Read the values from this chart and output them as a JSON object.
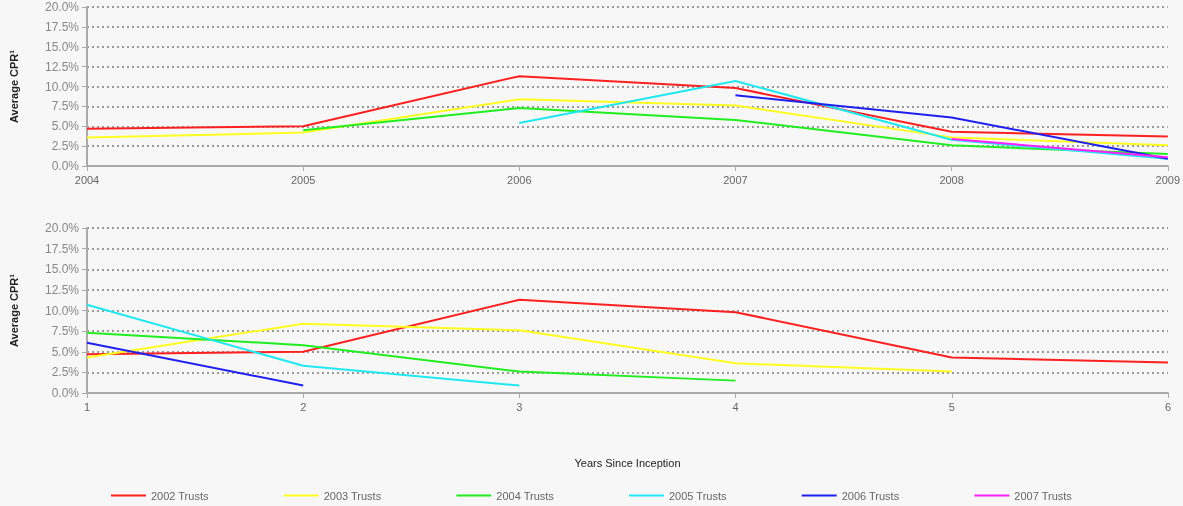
{
  "chart_data": [
    {
      "type": "line",
      "ylabel": "Average CPR¹",
      "x": [
        2004,
        2005,
        2006,
        2007,
        2008,
        2009
      ],
      "xlim": [
        2004,
        2009
      ],
      "xticks": [
        2004,
        2005,
        2006,
        2007,
        2008,
        2009
      ],
      "ylim": [
        0,
        20
      ],
      "yticks": [
        {
          "value": 0,
          "label": "0.0%"
        },
        {
          "value": 2.5,
          "label": "2.5%"
        },
        {
          "value": 5,
          "label": "5.0%"
        },
        {
          "value": 7.5,
          "label": "7.5%"
        },
        {
          "value": 10,
          "label": "10.0%"
        },
        {
          "value": 12.5,
          "label": "12.5%"
        },
        {
          "value": 15,
          "label": "15.0%"
        },
        {
          "value": 17.5,
          "label": "17.5%"
        },
        {
          "value": 20,
          "label": "20.0%"
        }
      ],
      "grid": "y",
      "legend": "bottom",
      "marker": "none",
      "line_style": "solid",
      "series": [
        {
          "name": "2002 Trusts",
          "color": "#ff2020",
          "values": [
            4.7,
            5.0,
            11.3,
            9.8,
            4.3,
            3.7
          ]
        },
        {
          "name": "2003 Trusts",
          "color": "#ffff20",
          "values": [
            3.6,
            4.2,
            8.4,
            7.6,
            3.6,
            2.6
          ]
        },
        {
          "name": "2004 Trusts",
          "color": "#20ee20",
          "values": [
            null,
            4.5,
            7.3,
            5.8,
            2.6,
            1.5
          ]
        },
        {
          "name": "2005 Trusts",
          "color": "#20e8f0",
          "values": [
            null,
            null,
            5.4,
            10.7,
            3.3,
            0.9
          ]
        },
        {
          "name": "2006 Trusts",
          "color": "#2020ee",
          "values": [
            null,
            null,
            null,
            8.9,
            6.1,
            0.9
          ]
        },
        {
          "name": "2007 Trusts",
          "color": "#ff20ff",
          "values": [
            null,
            null,
            null,
            null,
            3.4,
            1.1
          ]
        }
      ]
    },
    {
      "type": "line",
      "ylabel": "Average CPR¹",
      "xlabel": "Years Since Inception",
      "x": [
        1,
        2,
        3,
        4,
        5,
        6
      ],
      "xlim": [
        1,
        6
      ],
      "xticks": [
        1,
        2,
        3,
        4,
        5,
        6
      ],
      "ylim": [
        0,
        20
      ],
      "yticks": [
        {
          "value": 0,
          "label": "0.0%"
        },
        {
          "value": 2.5,
          "label": "2.5%"
        },
        {
          "value": 5,
          "label": "5.0%"
        },
        {
          "value": 7.5,
          "label": "7.5%"
        },
        {
          "value": 10,
          "label": "10.0%"
        },
        {
          "value": 12.5,
          "label": "12.5%"
        },
        {
          "value": 15,
          "label": "15.0%"
        },
        {
          "value": 17.5,
          "label": "17.5%"
        },
        {
          "value": 20,
          "label": "20.0%"
        }
      ],
      "grid": "y",
      "marker": "none",
      "line_style": "solid",
      "series": [
        {
          "color": "#ff2020",
          "values": [
            4.7,
            5.0,
            11.3,
            9.8,
            4.3,
            3.7
          ]
        },
        {
          "color": "#ffff20",
          "values": [
            4.3,
            8.4,
            7.6,
            3.6,
            2.6,
            null
          ]
        },
        {
          "color": "#20ee20",
          "values": [
            7.3,
            5.8,
            2.6,
            1.5,
            null,
            null
          ]
        },
        {
          "color": "#20e8f0",
          "values": [
            10.7,
            3.3,
            0.9,
            null,
            null,
            null
          ]
        },
        {
          "color": "#2020ee",
          "values": [
            6.1,
            0.9,
            null,
            null,
            null,
            null
          ]
        }
      ]
    }
  ]
}
